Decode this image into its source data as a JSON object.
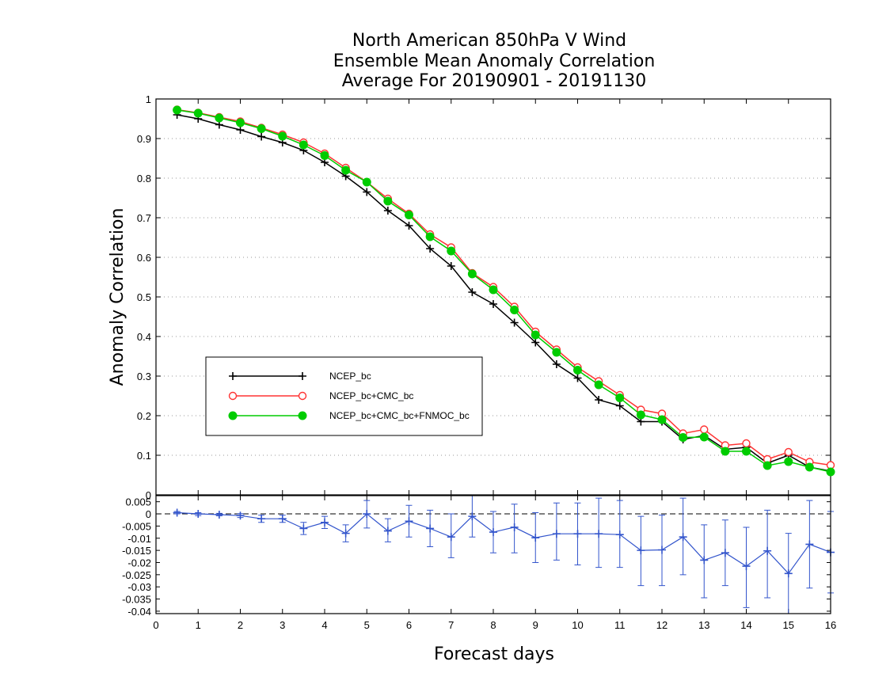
{
  "chart_data": [
    {
      "type": "line",
      "title_lines": [
        "North American 850hPa V Wind",
        "Ensemble Mean Anomaly Correlation",
        "Average For 20190901 - 20191130"
      ],
      "xlabel": "",
      "ylabel": "Anomaly Correlation",
      "xlim": [
        0,
        16
      ],
      "ylim": [
        0,
        1
      ],
      "yticks": [
        "0",
        "0.1",
        "0.2",
        "0.3",
        "0.4",
        "0.5",
        "0.6",
        "0.7",
        "0.8",
        "0.9",
        "1"
      ],
      "grid": true,
      "legend_position": "left-center",
      "x": [
        0.5,
        1,
        1.5,
        2,
        2.5,
        3,
        3.5,
        4,
        4.5,
        5,
        5.5,
        6,
        6.5,
        7,
        7.5,
        8,
        8.5,
        9,
        9.5,
        10,
        10.5,
        11,
        11.5,
        12,
        12.5,
        13,
        13.5,
        14,
        14.5,
        15,
        15.5,
        16
      ],
      "series": [
        {
          "name": "NCEP_bc",
          "color": "#000000",
          "marker": "plus",
          "values": [
            0.96,
            0.95,
            0.935,
            0.922,
            0.905,
            0.89,
            0.87,
            0.84,
            0.805,
            0.765,
            0.718,
            0.68,
            0.622,
            0.578,
            0.512,
            0.482,
            0.435,
            0.385,
            0.33,
            0.295,
            0.24,
            0.225,
            0.185,
            0.185,
            0.14,
            0.15,
            0.115,
            0.12,
            0.08,
            0.1,
            0.07,
            0.06
          ]
        },
        {
          "name": "NCEP_bc+CMC_bc",
          "color": "#ff3333",
          "marker": "open-circle",
          "values": [
            0.973,
            0.965,
            0.954,
            0.943,
            0.927,
            0.91,
            0.89,
            0.862,
            0.826,
            0.79,
            0.748,
            0.71,
            0.658,
            0.625,
            0.56,
            0.525,
            0.475,
            0.412,
            0.367,
            0.322,
            0.287,
            0.252,
            0.215,
            0.205,
            0.155,
            0.165,
            0.125,
            0.13,
            0.09,
            0.108,
            0.083,
            0.075
          ]
        },
        {
          "name": "NCEP_bc+CMC_bc+FNMOC_bc",
          "color": "#00cc00",
          "marker": "filled-circle",
          "values": [
            0.972,
            0.964,
            0.952,
            0.94,
            0.925,
            0.906,
            0.884,
            0.857,
            0.82,
            0.79,
            0.742,
            0.707,
            0.652,
            0.616,
            0.558,
            0.518,
            0.467,
            0.404,
            0.36,
            0.315,
            0.278,
            0.245,
            0.202,
            0.19,
            0.145,
            0.146,
            0.11,
            0.11,
            0.074,
            0.084,
            0.07,
            0.058
          ]
        }
      ]
    },
    {
      "type": "line",
      "xlabel": "Forecast days",
      "xlim": [
        0,
        16
      ],
      "ylim": [
        -0.041,
        0.0075
      ],
      "xticks": [
        "0",
        "1",
        "2",
        "3",
        "4",
        "5",
        "6",
        "7",
        "8",
        "9",
        "10",
        "11",
        "12",
        "13",
        "14",
        "15",
        "16"
      ],
      "yticks": [
        "0.005",
        "0",
        "-0.005",
        "-0.01",
        "-0.015",
        "-0.02",
        "-0.025",
        "-0.03",
        "-0.035",
        "-0.04"
      ],
      "zero_line": true,
      "series": [
        {
          "color": "#3355cc",
          "marker": "plus",
          "x": [
            0.5,
            1,
            1.5,
            2,
            2.5,
            3,
            3.5,
            4,
            4.5,
            5,
            5.5,
            6,
            6.5,
            7,
            7.5,
            8,
            8.5,
            9,
            9.5,
            10,
            10.5,
            11,
            11.5,
            12,
            12.5,
            13,
            13.5,
            14,
            14.5,
            15,
            15.5,
            16
          ],
          "values": [
            0.0005,
            0.0,
            -0.0003,
            -0.0007,
            -0.002,
            -0.002,
            -0.006,
            -0.0035,
            -0.008,
            0.0,
            -0.007,
            -0.003,
            -0.006,
            -0.0095,
            -0.001,
            -0.0075,
            -0.0055,
            -0.0098,
            -0.0082,
            -0.0082,
            -0.0082,
            -0.0085,
            -0.015,
            -0.0148,
            -0.0095,
            -0.019,
            -0.016,
            -0.0215,
            -0.0152,
            -0.0245,
            -0.0125,
            -0.0158
          ],
          "lower": [
            0.0,
            -0.0007,
            -0.0008,
            -0.0015,
            -0.0035,
            -0.0035,
            -0.0085,
            -0.006,
            -0.0115,
            -0.0058,
            -0.0115,
            -0.0095,
            -0.0135,
            -0.018,
            -0.0095,
            -0.016,
            -0.016,
            -0.02,
            -0.019,
            -0.021,
            -0.022,
            -0.022,
            -0.0295,
            -0.0295,
            -0.025,
            -0.0345,
            -0.0295,
            -0.0385,
            -0.0345,
            -0.041,
            -0.0305,
            -0.0325
          ],
          "upper": [
            0.001,
            0.0005,
            0.0002,
            0.0001,
            -0.0005,
            -0.0005,
            -0.0035,
            -0.001,
            -0.0045,
            0.0055,
            -0.002,
            0.0035,
            0.0015,
            0.0,
            0.0075,
            0.001,
            0.004,
            0.0005,
            0.0045,
            0.0045,
            0.0065,
            0.0055,
            -0.001,
            -0.0005,
            0.0065,
            -0.0045,
            -0.0025,
            -0.0055,
            0.0015,
            -0.008,
            0.0055,
            0.001
          ]
        }
      ]
    }
  ]
}
